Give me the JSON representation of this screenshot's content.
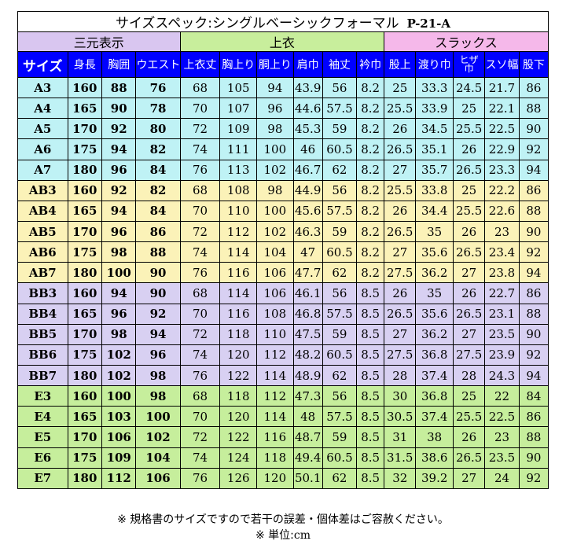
{
  "title": "サイズスペック:シングルベーシックフォーマル",
  "code": "P-21-A",
  "groups": {
    "a": "三元表示",
    "b": "上衣",
    "c": "スラックス"
  },
  "headers": {
    "size": "サイズ",
    "height": "身長",
    "chest": "胸囲",
    "waist": "ウエスト",
    "jacket_length": "上衣丈",
    "chest_up": "胸上り",
    "waist_up": "胴上り",
    "shoulder": "肩巾",
    "sleeve": "袖丈",
    "collar": "衿巾",
    "rise": "股上",
    "thigh": "渡り巾",
    "knee_top": "ヒザ",
    "knee_bottom": "巾",
    "hem": "スソ幅",
    "inseam": "股下"
  },
  "rows": [
    [
      "A3",
      "160",
      "88",
      "76",
      "68",
      "105",
      "94",
      "43.9",
      "56",
      "8.2",
      "25",
      "33.3",
      "24.5",
      "21.7",
      "86"
    ],
    [
      "A4",
      "165",
      "90",
      "78",
      "70",
      "107",
      "96",
      "44.6",
      "57.5",
      "8.2",
      "25.5",
      "33.9",
      "25",
      "22.1",
      "88"
    ],
    [
      "A5",
      "170",
      "92",
      "80",
      "72",
      "109",
      "98",
      "45.3",
      "59",
      "8.2",
      "26",
      "34.5",
      "25.5",
      "22.5",
      "90"
    ],
    [
      "A6",
      "175",
      "94",
      "82",
      "74",
      "111",
      "100",
      "46",
      "60.5",
      "8.2",
      "26.5",
      "35.1",
      "26",
      "22.9",
      "92"
    ],
    [
      "A7",
      "180",
      "96",
      "84",
      "76",
      "113",
      "102",
      "46.7",
      "62",
      "8.2",
      "27",
      "35.7",
      "26.5",
      "23.3",
      "94"
    ],
    [
      "AB3",
      "160",
      "92",
      "82",
      "68",
      "108",
      "98",
      "44.9",
      "56",
      "8.2",
      "25.5",
      "33.8",
      "25",
      "22.2",
      "86"
    ],
    [
      "AB4",
      "165",
      "94",
      "84",
      "70",
      "110",
      "100",
      "45.6",
      "57.5",
      "8.2",
      "26",
      "34.4",
      "25.5",
      "22.6",
      "88"
    ],
    [
      "AB5",
      "170",
      "96",
      "86",
      "72",
      "112",
      "102",
      "46.3",
      "59",
      "8.2",
      "26.5",
      "35",
      "26",
      "23",
      "90"
    ],
    [
      "AB6",
      "175",
      "98",
      "88",
      "74",
      "114",
      "104",
      "47",
      "60.5",
      "8.2",
      "27",
      "35.6",
      "26.5",
      "23.4",
      "92"
    ],
    [
      "AB7",
      "180",
      "100",
      "90",
      "76",
      "116",
      "106",
      "47.7",
      "62",
      "8.2",
      "27.5",
      "36.2",
      "27",
      "23.8",
      "94"
    ],
    [
      "BB3",
      "160",
      "94",
      "90",
      "68",
      "114",
      "106",
      "46.1",
      "56",
      "8.5",
      "26",
      "35",
      "26",
      "22.7",
      "86"
    ],
    [
      "BB4",
      "165",
      "96",
      "92",
      "70",
      "116",
      "108",
      "46.8",
      "57.5",
      "8.5",
      "26.5",
      "35.6",
      "26.5",
      "23.1",
      "88"
    ],
    [
      "BB5",
      "170",
      "98",
      "94",
      "72",
      "118",
      "110",
      "47.5",
      "59",
      "8.5",
      "27",
      "36.2",
      "27",
      "23.5",
      "90"
    ],
    [
      "BB6",
      "175",
      "102",
      "96",
      "74",
      "120",
      "112",
      "48.2",
      "60.5",
      "8.5",
      "27.5",
      "36.8",
      "27.5",
      "23.9",
      "92"
    ],
    [
      "BB7",
      "180",
      "102",
      "98",
      "76",
      "122",
      "114",
      "48.9",
      "62",
      "8.5",
      "28",
      "37.4",
      "28",
      "24.3",
      "94"
    ],
    [
      "E3",
      "160",
      "100",
      "98",
      "68",
      "118",
      "112",
      "47.3",
      "56",
      "8.5",
      "30",
      "36.8",
      "25",
      "22",
      "84"
    ],
    [
      "E4",
      "165",
      "103",
      "100",
      "70",
      "120",
      "114",
      "48",
      "57.5",
      "8.5",
      "30.5",
      "37.4",
      "25.5",
      "22.5",
      "86"
    ],
    [
      "E5",
      "170",
      "106",
      "102",
      "72",
      "122",
      "116",
      "48.7",
      "59",
      "8.5",
      "31",
      "38",
      "26",
      "23",
      "88"
    ],
    [
      "E6",
      "175",
      "109",
      "104",
      "74",
      "124",
      "118",
      "49.4",
      "60.5",
      "8.5",
      "31.5",
      "38.6",
      "26.5",
      "23.5",
      "90"
    ],
    [
      "E7",
      "180",
      "112",
      "106",
      "76",
      "126",
      "120",
      "50.1",
      "62",
      "8.5",
      "32",
      "39.2",
      "27",
      "24",
      "92"
    ]
  ],
  "colors": {
    "header_bg": "#0000ff",
    "A": "#bff2f5",
    "AB": "#fbf2b8",
    "BB": "#d8d0f2",
    "E": "#c6ee9c"
  },
  "note": "※ 規格書のサイズですので若干の誤差・個体差はご容赦ください。",
  "unit": {
    "label": "※ 単位:",
    "value": "cm"
  }
}
